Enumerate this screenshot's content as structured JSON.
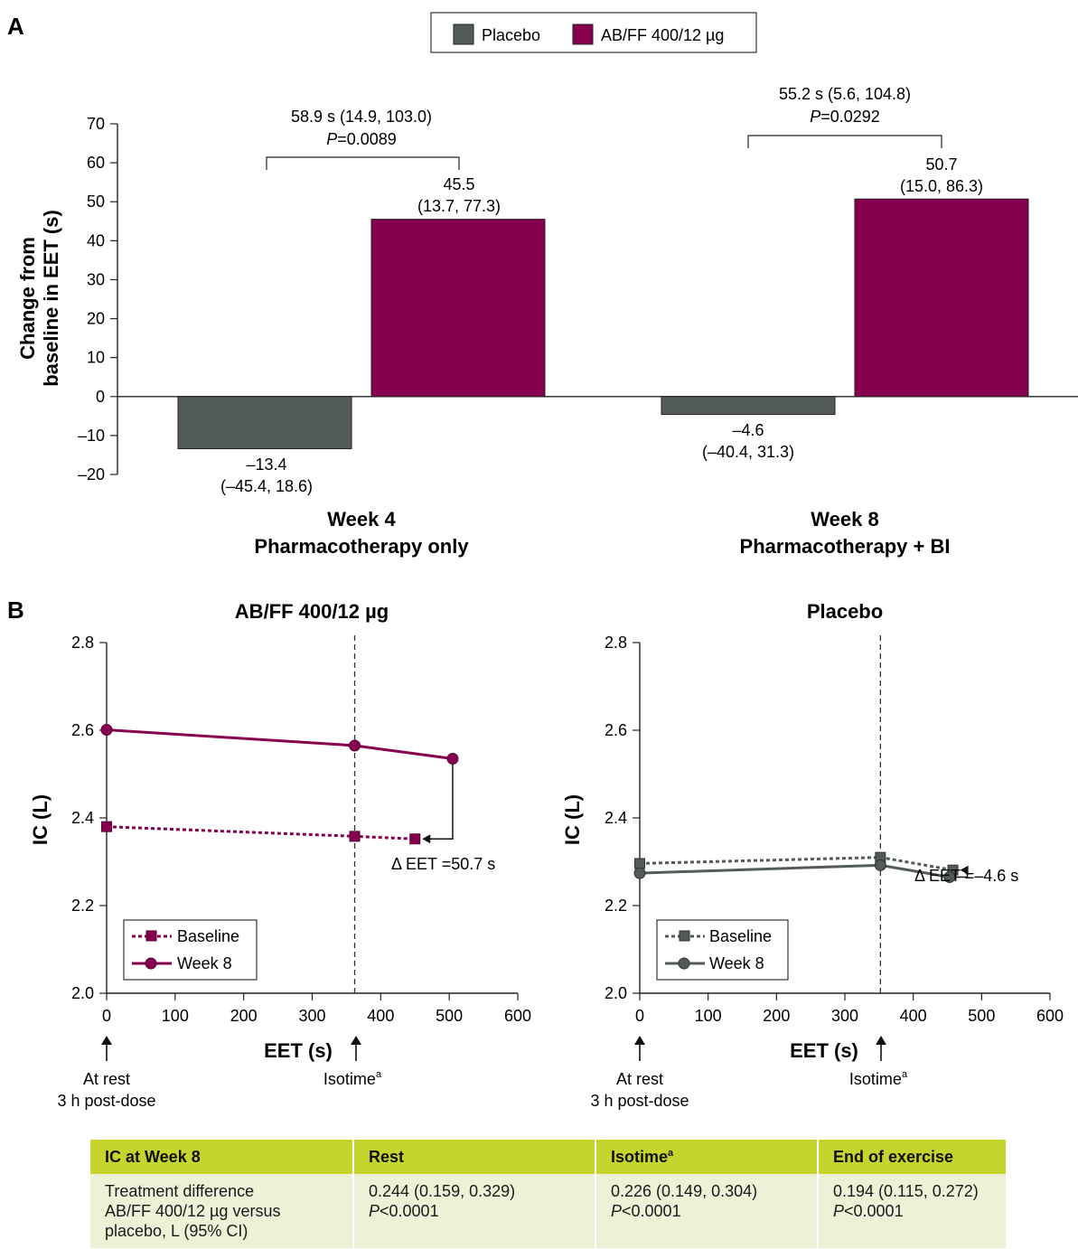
{
  "panel_a": {
    "letter": "A",
    "legend": [
      "Placebo",
      "AB/FF 400/12 µg"
    ],
    "ylabel_lines": [
      "Change from",
      "baseline in EET (s)"
    ],
    "yticks": [
      "70",
      "60",
      "50",
      "40",
      "30",
      "20",
      "10",
      "0",
      "–10",
      "–20"
    ],
    "groups": [
      {
        "label_lines": [
          "Week 4",
          "Pharmacotherapy only"
        ],
        "bars": [
          {
            "label_lines": [
              "–13.4",
              "(–45.4, 18.6)"
            ]
          },
          {
            "label_lines": [
              "45.5",
              "(13.7, 77.3)"
            ]
          }
        ],
        "diff_lines": [
          "58.9 s (14.9, 103.0)",
          "=0.0089"
        ]
      },
      {
        "label_lines": [
          "Week 8",
          "Pharmacotherapy + BI"
        ],
        "bars": [
          {
            "label_lines": [
              "–4.6",
              "(–40.4, 31.3)"
            ]
          },
          {
            "label_lines": [
              "50.7",
              "(15.0, 86.3)"
            ]
          }
        ],
        "diff_lines": [
          "55.2 s (5.6, 104.8)",
          "=0.0292"
        ]
      }
    ],
    "p_letter": "P"
  },
  "panel_b": {
    "letter": "B",
    "ylabel": "IC (L)",
    "xlabel": "EET (s)",
    "yticks": [
      "2.8",
      "2.6",
      "2.4",
      "2.2",
      "2.0"
    ],
    "xticks": [
      "0",
      "100",
      "200",
      "300",
      "400",
      "500",
      "600"
    ],
    "rest_lines": [
      "At rest",
      "3 h post-dose"
    ],
    "isotime_label": "Isotime",
    "isotime_sup": "a",
    "legend": [
      "Baseline",
      "Week 8"
    ],
    "left_title": "AB/FF 400/12 µg",
    "right_title": "Placebo",
    "left_delta": "Δ EET =50.7 s",
    "right_delta": "Δ EET =–4.6 s"
  },
  "table": {
    "headers": [
      "IC at Week 8",
      "Rest",
      "Isotime",
      "End of exercise"
    ],
    "header_sup": "a",
    "row_label_lines": [
      "Treatment difference",
      "AB/FF 400/12 µg versus",
      "placebo, L (95% CI)"
    ],
    "cells": [
      {
        "value": "0.244 (0.159, 0.329)",
        "p_letter": "P",
        "p_value": "<0.0001"
      },
      {
        "value": "0.226 (0.149, 0.304)",
        "p_letter": "P",
        "p_value": "<0.0001"
      },
      {
        "value": "0.194 (0.115, 0.272)",
        "p_letter": "P",
        "p_value": "<0.0001"
      }
    ]
  },
  "colors": {
    "placebo": "#525b56",
    "abff": "#870050",
    "table_header": "#c5d52d",
    "table_body": "#eef1d6"
  },
  "chart_data": [
    {
      "type": "bar",
      "categories": [
        "Week 4 Pharmacotherapy only",
        "Week 8 Pharmacotherapy + BI"
      ],
      "series": [
        {
          "name": "Placebo",
          "values": [
            -13.4,
            -4.6
          ],
          "ci_low": [
            -45.4,
            -40.4
          ],
          "ci_high": [
            18.6,
            31.3
          ]
        },
        {
          "name": "AB/FF 400/12 µg",
          "values": [
            45.5,
            50.7
          ],
          "ci_low": [
            13.7,
            15.0
          ],
          "ci_high": [
            77.3,
            86.3
          ]
        }
      ],
      "treatment_differences": [
        {
          "value": 58.9,
          "ci": [
            14.9,
            103.0
          ],
          "p": "0.0089"
        },
        {
          "value": 55.2,
          "ci": [
            5.6,
            104.8
          ],
          "p": "0.0292"
        }
      ],
      "ylabel": "Change from baseline in EET (s)",
      "ylim": [
        -20,
        70
      ],
      "legend": "top-center"
    },
    {
      "type": "line",
      "title": "AB/FF 400/12 µg",
      "xlabel": "EET (s)",
      "ylabel": "IC (L)",
      "xlim": [
        0,
        600
      ],
      "ylim": [
        2.0,
        2.8
      ],
      "series": [
        {
          "name": "Baseline",
          "x": [
            0,
            362,
            450
          ],
          "y": [
            2.38,
            2.358,
            2.352
          ],
          "style": "dotted",
          "marker": "square"
        },
        {
          "name": "Week 8",
          "x": [
            0,
            362,
            505
          ],
          "y": [
            2.601,
            2.565,
            2.535
          ],
          "style": "solid",
          "marker": "circle"
        }
      ],
      "vline_x": 362,
      "delta_eet": 50.7,
      "legend": "bottom-left"
    },
    {
      "type": "line",
      "title": "Placebo",
      "xlabel": "EET (s)",
      "ylabel": "IC (L)",
      "xlim": [
        0,
        600
      ],
      "ylim": [
        2.0,
        2.8
      ],
      "series": [
        {
          "name": "Baseline",
          "x": [
            0,
            352,
            458
          ],
          "y": [
            2.296,
            2.31,
            2.281
          ],
          "style": "dotted",
          "marker": "square"
        },
        {
          "name": "Week 8",
          "x": [
            0,
            352,
            453
          ],
          "y": [
            2.274,
            2.292,
            2.265
          ],
          "style": "solid",
          "marker": "circle"
        }
      ],
      "vline_x": 352,
      "delta_eet": -4.6,
      "legend": "bottom-left"
    }
  ]
}
